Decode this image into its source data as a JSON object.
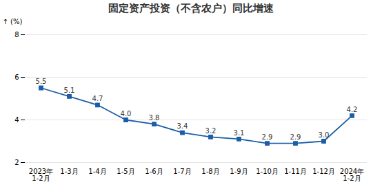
{
  "chart_data": {
    "type": "line",
    "title": "固定资产投资（不含农户）同比增速",
    "ylabel": "(%)",
    "categories": [
      "2023年\n1-2月",
      "1-3月",
      "1-4月",
      "1-5月",
      "1-6月",
      "1-7月",
      "1-8月",
      "1-9月",
      "1-10月",
      "1-11月",
      "1-12月",
      "2024年\n1-2月"
    ],
    "values": [
      5.5,
      5.1,
      4.7,
      4.0,
      3.8,
      3.4,
      3.2,
      3.1,
      2.9,
      2.9,
      3.0,
      4.2
    ],
    "value_labels": [
      "5.5",
      "5.1",
      "4.7",
      "4.0",
      "3.8",
      "3.4",
      "3.2",
      "3.1",
      "2.9",
      "2.9",
      "3.0",
      "4.2"
    ],
    "color": "#1B5EA8",
    "marker": "square",
    "data_labels": true,
    "grid": true,
    "ylim": [
      2,
      8
    ],
    "yticks": [
      2,
      4,
      6,
      8
    ]
  }
}
